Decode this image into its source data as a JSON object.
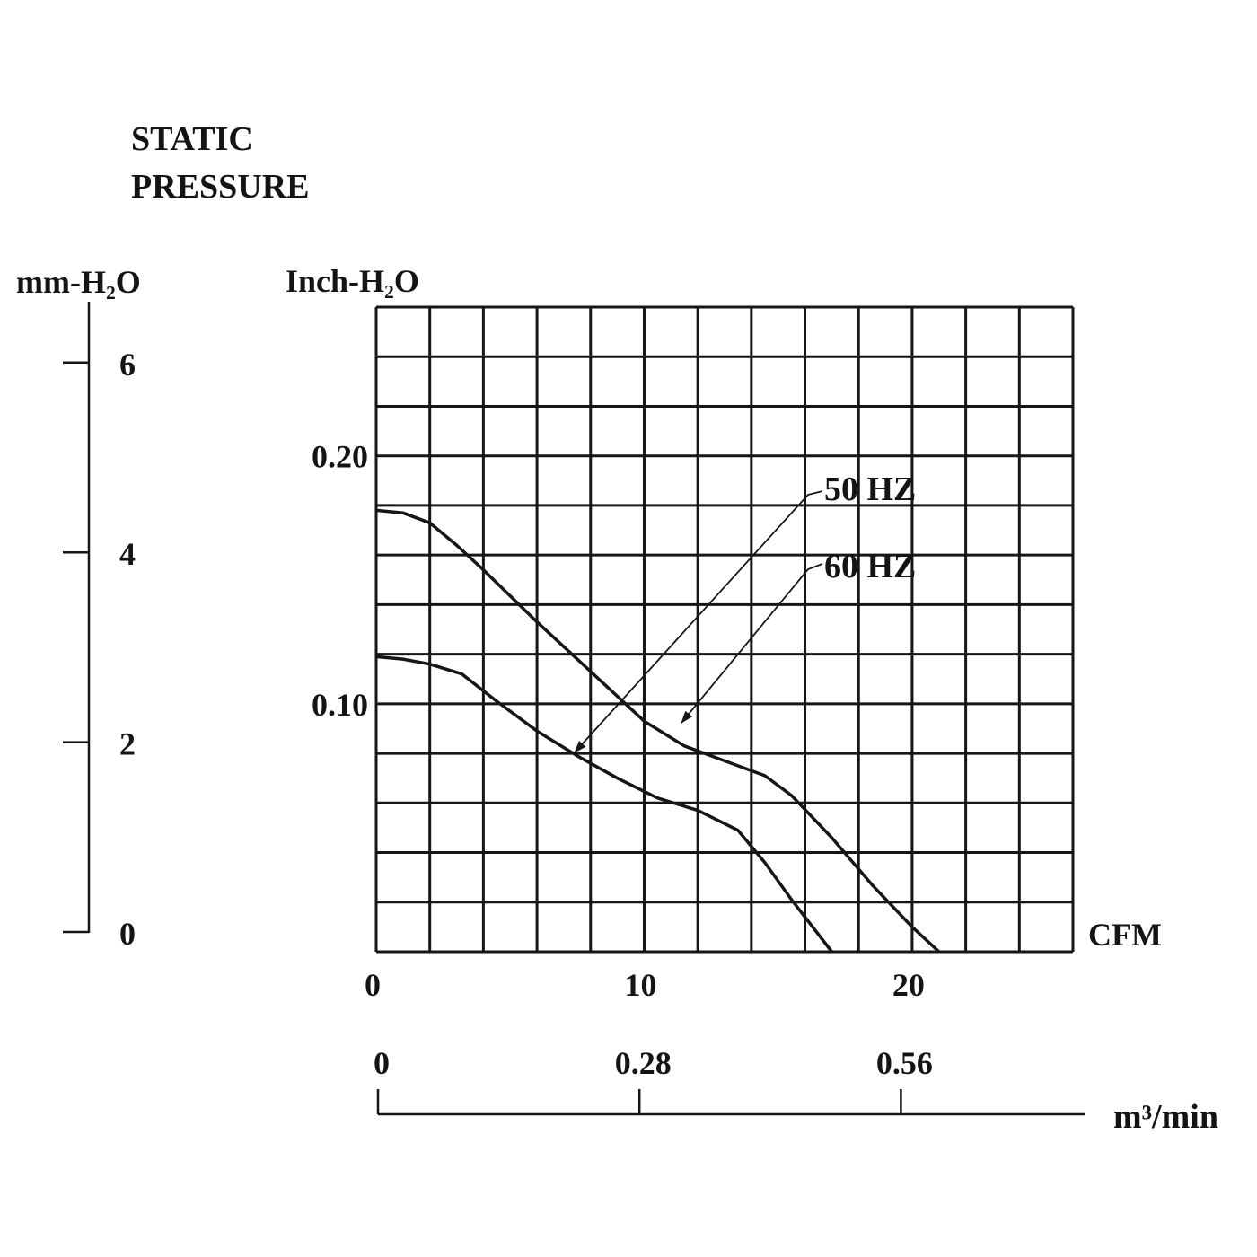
{
  "title_lines": [
    "STATIC",
    "PRESSURE"
  ],
  "left_axis": {
    "unit_label": "mm-H₂O",
    "ticks": [
      {
        "value": 6,
        "label": "6"
      },
      {
        "value": 4,
        "label": "4"
      },
      {
        "value": 2,
        "label": "2"
      },
      {
        "value": 0,
        "label": "0"
      }
    ]
  },
  "chart_data": {
    "type": "line",
    "ylabel": "Inch-H₂O",
    "xlabel": "CFM",
    "xlim": [
      0,
      26
    ],
    "ylim": [
      0,
      0.26
    ],
    "yticks": [
      {
        "value": 0.2,
        "label": "0.20"
      },
      {
        "value": 0.1,
        "label": "0.10"
      }
    ],
    "xticks": [
      {
        "value": 0,
        "label": "0"
      },
      {
        "value": 10,
        "label": "10"
      },
      {
        "value": 20,
        "label": "20"
      }
    ],
    "grid": true,
    "series": [
      {
        "name": "60 HZ",
        "x": [
          0,
          1,
          2,
          3,
          4,
          6,
          8,
          10,
          11.5,
          13,
          14.5,
          15.5,
          17,
          18.5,
          20,
          21
        ],
        "y": [
          0.178,
          0.177,
          0.173,
          0.164,
          0.154,
          0.133,
          0.113,
          0.093,
          0.083,
          0.077,
          0.071,
          0.063,
          0.046,
          0.027,
          0.01,
          0
        ]
      },
      {
        "name": "50 HZ",
        "x": [
          0,
          1,
          2,
          3.2,
          4.5,
          6,
          7.5,
          9,
          10.5,
          12,
          13.5,
          14.5,
          15.5,
          16.5,
          17
        ],
        "y": [
          0.119,
          0.118,
          0.116,
          0.112,
          0.101,
          0.089,
          0.079,
          0.07,
          0.062,
          0.057,
          0.049,
          0.036,
          0.021,
          0.007,
          0
        ]
      }
    ]
  },
  "flow_axis": {
    "unit_label": "m³/min",
    "ticks": [
      {
        "value": 0,
        "label": "0"
      },
      {
        "value": 0.28,
        "label": "0.28"
      },
      {
        "value": 0.56,
        "label": "0.56"
      }
    ]
  }
}
